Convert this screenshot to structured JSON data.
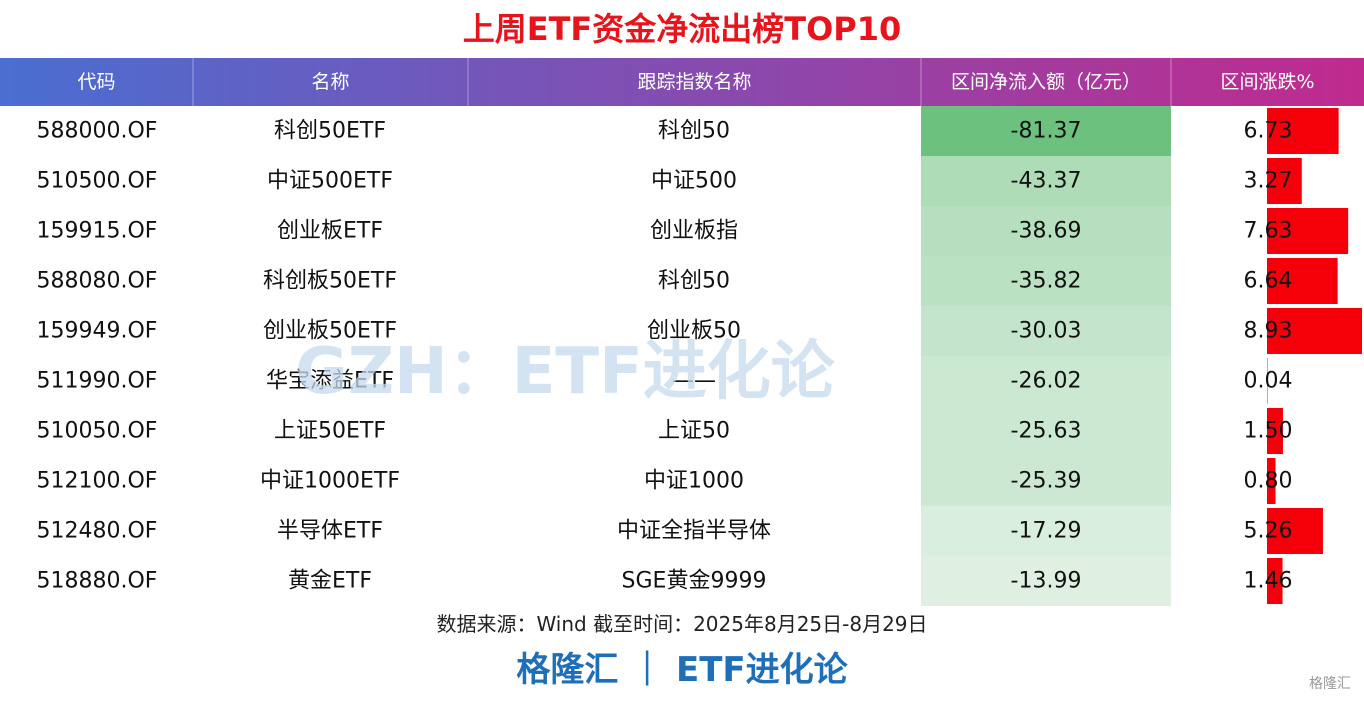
{
  "title": "上周ETF资金净流出榜TOP10",
  "watermark": "GZH：ETF进化论",
  "table": {
    "headers": [
      "代码",
      "名称",
      "跟踪指数名称",
      "区间净流入额（亿元）",
      "区间涨跌%"
    ],
    "rows": [
      [
        "588000.OF",
        "科创50ETF",
        "科创50",
        -81.37,
        6.73
      ],
      [
        "510500.OF",
        "中证500ETF",
        "中证500",
        -43.37,
        3.27
      ],
      [
        "159915.OF",
        "创业板ETF",
        "创业板指",
        -38.69,
        7.63
      ],
      [
        "588080.OF",
        "科创板50ETF",
        "科创50",
        -35.82,
        6.64
      ],
      [
        "159949.OF",
        "创业板50ETF",
        "创业板50",
        -30.03,
        8.93
      ],
      [
        "511990.OF",
        "华宝添益ETF",
        "——",
        -26.02,
        0.04
      ],
      [
        "510050.OF",
        "上证50ETF",
        "上证50",
        -25.63,
        {
          "value": 1.5,
          "label": "1.50"
        }
      ],
      [
        "512100.OF",
        "中证1000ETF",
        "中证1000",
        -25.39,
        {
          "value": 0.8,
          "label": "0.80"
        }
      ],
      [
        "512480.OF",
        "半导体ETF",
        "中证全指半导体",
        -17.29,
        5.26
      ],
      [
        "518880.OF",
        "黄金ETF",
        "SGE黄金9999",
        -13.99,
        1.46
      ]
    ]
  },
  "source": "数据来源：Wind 截至时间：2025年8月25日-8月29日",
  "footer": "格隆汇 ｜ ETF进化论",
  "logo": "格隆汇"
}
